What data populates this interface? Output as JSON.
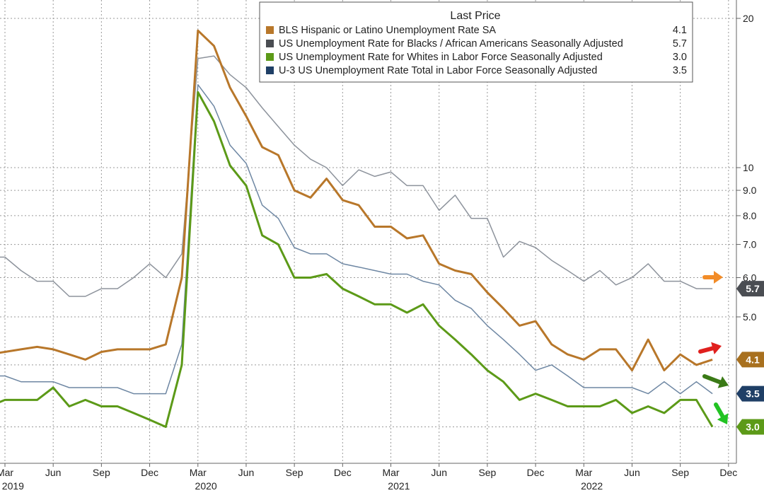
{
  "chart_data": {
    "type": "line",
    "y_scale": "log",
    "ylim": [
      2.6,
      22
    ],
    "y_ticks": [
      "5.0",
      "6.0",
      "7.0",
      "8.0",
      "9.0",
      "10",
      "20"
    ],
    "x_month_labels": [
      "Mar",
      "Jun",
      "Sep",
      "Dec",
      "Mar",
      "Jun",
      "Sep",
      "Dec",
      "Mar",
      "Jun",
      "Sep",
      "Dec",
      "Mar",
      "Jun",
      "Sep",
      "Dec"
    ],
    "x_year_labels": [
      "2019",
      "2020",
      "2021",
      "2022"
    ],
    "x_start": "2019-01",
    "x_end": "2022-12",
    "grid": true,
    "legend": {
      "title": "Last Price",
      "position": "top-center"
    },
    "series": [
      {
        "name": "BLS Hispanic or Latino Unemployment Rate SA",
        "last": "4.1",
        "color": "#b8772a",
        "values": [
          4.4,
          4.2,
          4.25,
          4.3,
          4.35,
          4.3,
          4.2,
          4.1,
          4.25,
          4.3,
          4.3,
          4.3,
          4.4,
          6.0,
          18.9,
          17.6,
          14.5,
          12.7,
          11.0,
          10.6,
          9.0,
          8.7,
          9.5,
          8.6,
          8.4,
          7.6,
          7.6,
          7.2,
          7.3,
          6.4,
          6.2,
          6.1,
          5.6,
          5.2,
          4.8,
          4.9,
          4.4,
          4.2,
          4.1,
          4.3,
          4.3,
          3.9,
          4.5,
          3.9,
          4.2,
          4.0,
          4.1
        ]
      },
      {
        "name": "US Unemployment Rate for Blacks / African Americans Seasonally Adjusted",
        "last": "5.7",
        "color": "#8d939c",
        "values": [
          6.8,
          6.6,
          6.6,
          6.2,
          5.9,
          5.9,
          5.5,
          5.5,
          5.7,
          5.7,
          6.0,
          6.4,
          6.0,
          6.7,
          16.6,
          16.8,
          15.4,
          14.5,
          13.2,
          12.1,
          11.1,
          10.4,
          10.0,
          9.2,
          9.9,
          9.6,
          9.8,
          9.2,
          9.2,
          8.2,
          8.8,
          7.9,
          7.9,
          6.6,
          7.1,
          6.9,
          6.5,
          6.2,
          5.9,
          6.2,
          5.8,
          6.0,
          6.4,
          5.9,
          5.9,
          5.7,
          5.7
        ]
      },
      {
        "name": "US Unemployment Rate for Whites in Labor Force Seasonally Adjusted",
        "last": "3.0",
        "color": "#5c9a18",
        "values": [
          3.4,
          3.3,
          3.4,
          3.4,
          3.4,
          3.6,
          3.3,
          3.4,
          3.3,
          3.3,
          3.2,
          3.1,
          3.0,
          4.0,
          14.2,
          12.4,
          10.1,
          9.2,
          7.3,
          7.0,
          6.0,
          6.0,
          6.1,
          5.7,
          5.5,
          5.3,
          5.3,
          5.1,
          5.3,
          4.8,
          4.5,
          4.2,
          3.9,
          3.7,
          3.4,
          3.5,
          3.4,
          3.3,
          3.3,
          3.3,
          3.4,
          3.2,
          3.3,
          3.2,
          3.4,
          3.4,
          3.0
        ]
      },
      {
        "name": "U-3 US Unemployment Rate Total in Labor Force Seasonally Adjusted",
        "last": "3.5",
        "color": "#6e87a3",
        "values": [
          4.0,
          3.8,
          3.8,
          3.7,
          3.7,
          3.7,
          3.6,
          3.6,
          3.6,
          3.6,
          3.5,
          3.5,
          3.5,
          4.4,
          14.7,
          13.3,
          11.1,
          10.2,
          8.4,
          7.9,
          6.9,
          6.7,
          6.7,
          6.4,
          6.3,
          6.2,
          6.1,
          6.1,
          5.9,
          5.8,
          5.4,
          5.2,
          4.8,
          4.5,
          4.2,
          3.9,
          4.0,
          3.8,
          3.6,
          3.6,
          3.6,
          3.6,
          3.5,
          3.7,
          3.5,
          3.7,
          3.5
        ]
      }
    ]
  },
  "badges": [
    {
      "text": "5.7",
      "color": "#4a4d52"
    },
    {
      "text": "4.1",
      "color": "#a8701e"
    },
    {
      "text": "3.5",
      "color": "#1f3f66"
    },
    {
      "text": "3.0",
      "color": "#5c9a18"
    }
  ],
  "arrows": [
    {
      "color": "#f28c28",
      "direction": "right"
    },
    {
      "color": "#e0201e",
      "direction": "up-right"
    },
    {
      "color": "#3a7a16",
      "direction": "down-right"
    },
    {
      "color": "#22c323",
      "direction": "down"
    }
  ]
}
